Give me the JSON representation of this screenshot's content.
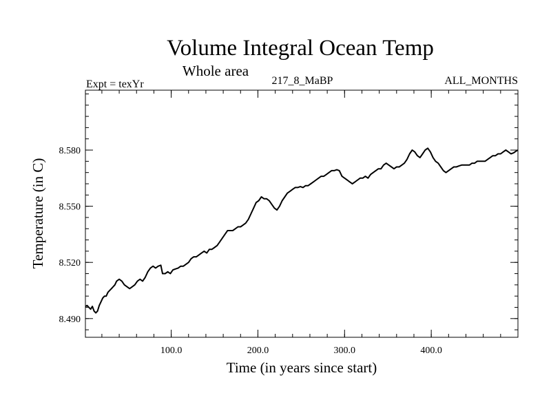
{
  "chart_data": {
    "type": "line",
    "title": "Volume Integral Ocean Temp",
    "subtitle": "Whole area",
    "header_left": "Expt = texYr",
    "header_center": "217_8_MaBP",
    "header_right": "ALL_MONTHS",
    "xlabel": "Time (in years since start)",
    "ylabel": "Temperature (in C)",
    "xlim": [
      1,
      500
    ],
    "ylim": [
      8.48,
      8.612
    ],
    "x_major_ticks": [
      100,
      200,
      300,
      400
    ],
    "x_tick_labels": [
      "100.0",
      "200.0",
      "300.0",
      "400.0"
    ],
    "x_minor_step": 20,
    "y_major_ticks": [
      8.49,
      8.52,
      8.55,
      8.58
    ],
    "y_tick_labels": [
      "8.490",
      "8.520",
      "8.550",
      "8.580"
    ],
    "y_minor_step": 0.006,
    "grid": false,
    "series": [
      {
        "color": "#000000",
        "points": [
          [
            1,
            8.4965
          ],
          [
            3,
            8.497
          ],
          [
            5,
            8.496
          ],
          [
            7,
            8.495
          ],
          [
            9,
            8.4965
          ],
          [
            11,
            8.494
          ],
          [
            13,
            8.493
          ],
          [
            15,
            8.494
          ],
          [
            17,
            8.497
          ],
          [
            19,
            8.499
          ],
          [
            21,
            8.501
          ],
          [
            23,
            8.502
          ],
          [
            25,
            8.502
          ],
          [
            27,
            8.504
          ],
          [
            29,
            8.505
          ],
          [
            31,
            8.506
          ],
          [
            33,
            8.507
          ],
          [
            35,
            8.508
          ],
          [
            37,
            8.51
          ],
          [
            40,
            8.511
          ],
          [
            43,
            8.51
          ],
          [
            46,
            8.508
          ],
          [
            49,
            8.507
          ],
          [
            52,
            8.506
          ],
          [
            55,
            8.507
          ],
          [
            58,
            8.508
          ],
          [
            61,
            8.51
          ],
          [
            64,
            8.511
          ],
          [
            67,
            8.51
          ],
          [
            70,
            8.512
          ],
          [
            73,
            8.515
          ],
          [
            76,
            8.517
          ],
          [
            79,
            8.518
          ],
          [
            82,
            8.517
          ],
          [
            85,
            8.518
          ],
          [
            88,
            8.5185
          ],
          [
            90,
            8.514
          ],
          [
            93,
            8.514
          ],
          [
            96,
            8.515
          ],
          [
            99,
            8.514
          ],
          [
            102,
            8.516
          ],
          [
            105,
            8.5165
          ],
          [
            108,
            8.517
          ],
          [
            111,
            8.518
          ],
          [
            114,
            8.518
          ],
          [
            117,
            8.519
          ],
          [
            120,
            8.52
          ],
          [
            123,
            8.522
          ],
          [
            126,
            8.523
          ],
          [
            129,
            8.523
          ],
          [
            132,
            8.524
          ],
          [
            135,
            8.525
          ],
          [
            138,
            8.526
          ],
          [
            141,
            8.525
          ],
          [
            144,
            8.527
          ],
          [
            147,
            8.527
          ],
          [
            150,
            8.528
          ],
          [
            153,
            8.529
          ],
          [
            156,
            8.531
          ],
          [
            159,
            8.533
          ],
          [
            162,
            8.535
          ],
          [
            165,
            8.537
          ],
          [
            168,
            8.537
          ],
          [
            171,
            8.537
          ],
          [
            174,
            8.538
          ],
          [
            177,
            8.539
          ],
          [
            180,
            8.539
          ],
          [
            183,
            8.54
          ],
          [
            186,
            8.541
          ],
          [
            189,
            8.543
          ],
          [
            192,
            8.546
          ],
          [
            195,
            8.549
          ],
          [
            198,
            8.552
          ],
          [
            201,
            8.553
          ],
          [
            204,
            8.555
          ],
          [
            207,
            8.554
          ],
          [
            210,
            8.554
          ],
          [
            213,
            8.553
          ],
          [
            216,
            8.551
          ],
          [
            219,
            8.549
          ],
          [
            222,
            8.548
          ],
          [
            225,
            8.55
          ],
          [
            228,
            8.553
          ],
          [
            231,
            8.555
          ],
          [
            234,
            8.557
          ],
          [
            237,
            8.558
          ],
          [
            240,
            8.559
          ],
          [
            243,
            8.56
          ],
          [
            246,
            8.56
          ],
          [
            249,
            8.5605
          ],
          [
            252,
            8.56
          ],
          [
            255,
            8.561
          ],
          [
            258,
            8.561
          ],
          [
            261,
            8.562
          ],
          [
            264,
            8.563
          ],
          [
            267,
            8.564
          ],
          [
            270,
            8.565
          ],
          [
            273,
            8.566
          ],
          [
            276,
            8.566
          ],
          [
            279,
            8.567
          ],
          [
            282,
            8.568
          ],
          [
            285,
            8.569
          ],
          [
            288,
            8.569
          ],
          [
            291,
            8.5695
          ],
          [
            294,
            8.569
          ],
          [
            297,
            8.566
          ],
          [
            300,
            8.565
          ],
          [
            303,
            8.564
          ],
          [
            306,
            8.563
          ],
          [
            309,
            8.562
          ],
          [
            312,
            8.563
          ],
          [
            315,
            8.564
          ],
          [
            318,
            8.565
          ],
          [
            321,
            8.565
          ],
          [
            324,
            8.566
          ],
          [
            327,
            8.565
          ],
          [
            330,
            8.567
          ],
          [
            333,
            8.568
          ],
          [
            336,
            8.569
          ],
          [
            339,
            8.57
          ],
          [
            342,
            8.57
          ],
          [
            345,
            8.572
          ],
          [
            348,
            8.573
          ],
          [
            351,
            8.572
          ],
          [
            354,
            8.571
          ],
          [
            357,
            8.57
          ],
          [
            360,
            8.571
          ],
          [
            363,
            8.571
          ],
          [
            366,
            8.572
          ],
          [
            369,
            8.573
          ],
          [
            372,
            8.575
          ],
          [
            375,
            8.578
          ],
          [
            378,
            8.58
          ],
          [
            381,
            8.579
          ],
          [
            384,
            8.577
          ],
          [
            387,
            8.576
          ],
          [
            390,
            8.578
          ],
          [
            393,
            8.58
          ],
          [
            396,
            8.581
          ],
          [
            399,
            8.579
          ],
          [
            402,
            8.576
          ],
          [
            405,
            8.574
          ],
          [
            408,
            8.573
          ],
          [
            411,
            8.571
          ],
          [
            414,
            8.569
          ],
          [
            417,
            8.568
          ],
          [
            420,
            8.569
          ],
          [
            423,
            8.57
          ],
          [
            426,
            8.571
          ],
          [
            429,
            8.571
          ],
          [
            432,
            8.5715
          ],
          [
            435,
            8.572
          ],
          [
            438,
            8.572
          ],
          [
            441,
            8.572
          ],
          [
            444,
            8.572
          ],
          [
            447,
            8.573
          ],
          [
            450,
            8.573
          ],
          [
            453,
            8.574
          ],
          [
            456,
            8.574
          ],
          [
            459,
            8.574
          ],
          [
            462,
            8.574
          ],
          [
            465,
            8.575
          ],
          [
            468,
            8.576
          ],
          [
            471,
            8.577
          ],
          [
            474,
            8.577
          ],
          [
            477,
            8.578
          ],
          [
            480,
            8.578
          ],
          [
            483,
            8.579
          ],
          [
            486,
            8.58
          ],
          [
            489,
            8.579
          ],
          [
            492,
            8.578
          ],
          [
            495,
            8.5785
          ],
          [
            498,
            8.5795
          ],
          [
            500,
            8.58
          ]
        ]
      }
    ]
  }
}
